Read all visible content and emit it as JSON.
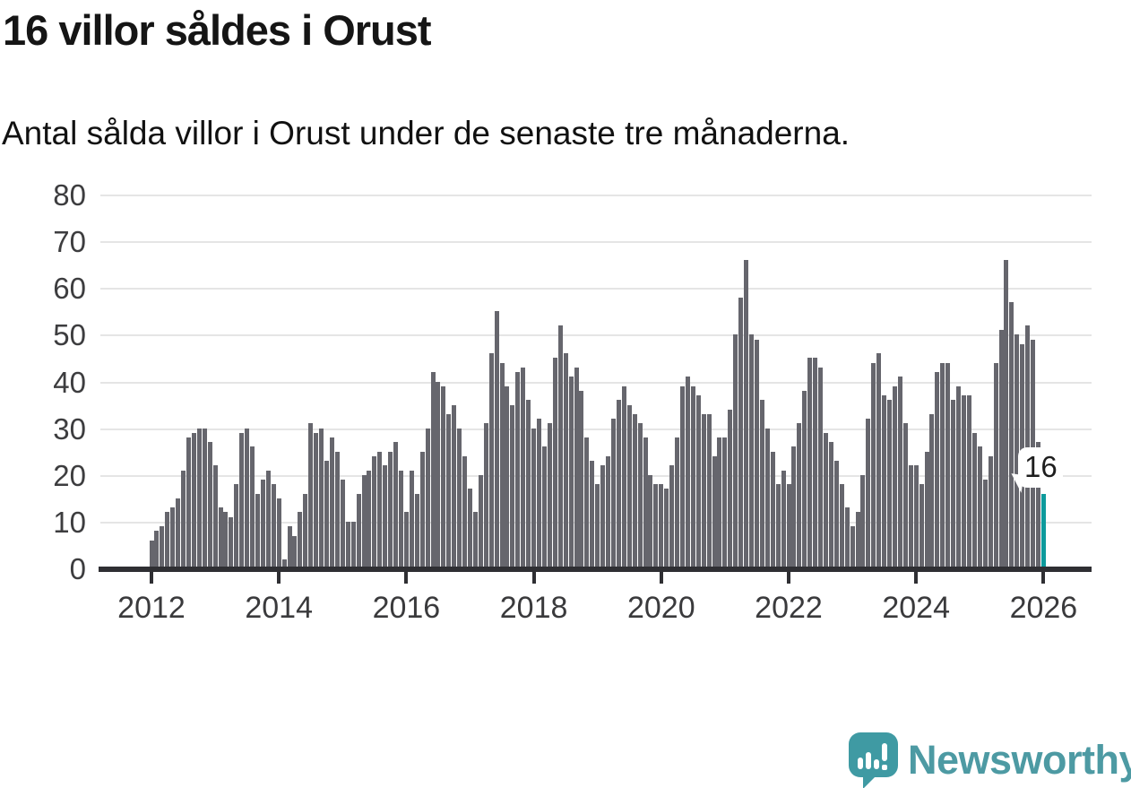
{
  "header": {
    "title": "16 villor såldes i Orust",
    "subtitle": "Antal sålda villor i Orust under de senaste tre månaderna."
  },
  "chart_data": {
    "type": "bar",
    "title": "16 villor såldes i Orust",
    "subtitle": "Antal sålda villor i Orust under de senaste tre månaderna.",
    "x_start": "2012-01",
    "frequency": "monthly",
    "x_tick_labels": [
      "2012",
      "2014",
      "2016",
      "2018",
      "2020",
      "2022",
      "2024",
      "2026"
    ],
    "y_ticks": [
      0,
      10,
      20,
      30,
      40,
      50,
      60,
      70,
      80
    ],
    "ylim": [
      0,
      80
    ],
    "grid": true,
    "legend": false,
    "values": [
      6,
      8,
      9,
      12,
      13,
      15,
      21,
      28,
      29,
      30,
      30,
      27,
      22,
      13,
      12,
      11,
      18,
      29,
      30,
      26,
      16,
      19,
      21,
      18,
      15,
      2,
      9,
      7,
      12,
      16,
      31,
      29,
      30,
      23,
      28,
      25,
      19,
      10,
      10,
      16,
      20,
      21,
      24,
      25,
      22,
      25,
      27,
      21,
      12,
      21,
      16,
      25,
      30,
      42,
      40,
      39,
      33,
      35,
      30,
      24,
      17,
      12,
      20,
      31,
      46,
      55,
      44,
      39,
      35,
      42,
      43,
      36,
      30,
      32,
      26,
      31,
      45,
      52,
      46,
      41,
      43,
      38,
      28,
      23,
      18,
      22,
      24,
      32,
      36,
      39,
      35,
      33,
      31,
      28,
      20,
      18,
      18,
      17,
      22,
      28,
      39,
      41,
      39,
      37,
      33,
      33,
      24,
      28,
      28,
      34,
      50,
      58,
      66,
      50,
      49,
      36,
      30,
      25,
      18,
      21,
      18,
      26,
      31,
      38,
      45,
      45,
      43,
      29,
      27,
      23,
      18,
      13,
      9,
      12,
      20,
      32,
      44,
      46,
      37,
      36,
      39,
      41,
      31,
      22,
      22,
      18,
      25,
      33,
      42,
      44,
      44,
      36,
      39,
      37,
      37,
      29,
      26,
      19,
      24,
      44,
      51,
      66,
      57,
      50,
      48,
      52,
      49,
      27,
      16
    ],
    "highlight_index": 168,
    "annotation": {
      "label": "16",
      "index": 168
    },
    "colors": {
      "bar": "#66666d",
      "accent": "#0d9a9c",
      "grid": "#e5e5e5",
      "axis": "#2f2f33",
      "axis_text": "#3a3a3c"
    }
  },
  "footer": {
    "logo_text": "Newsworthy",
    "logo_color": "#4d9aa3"
  }
}
